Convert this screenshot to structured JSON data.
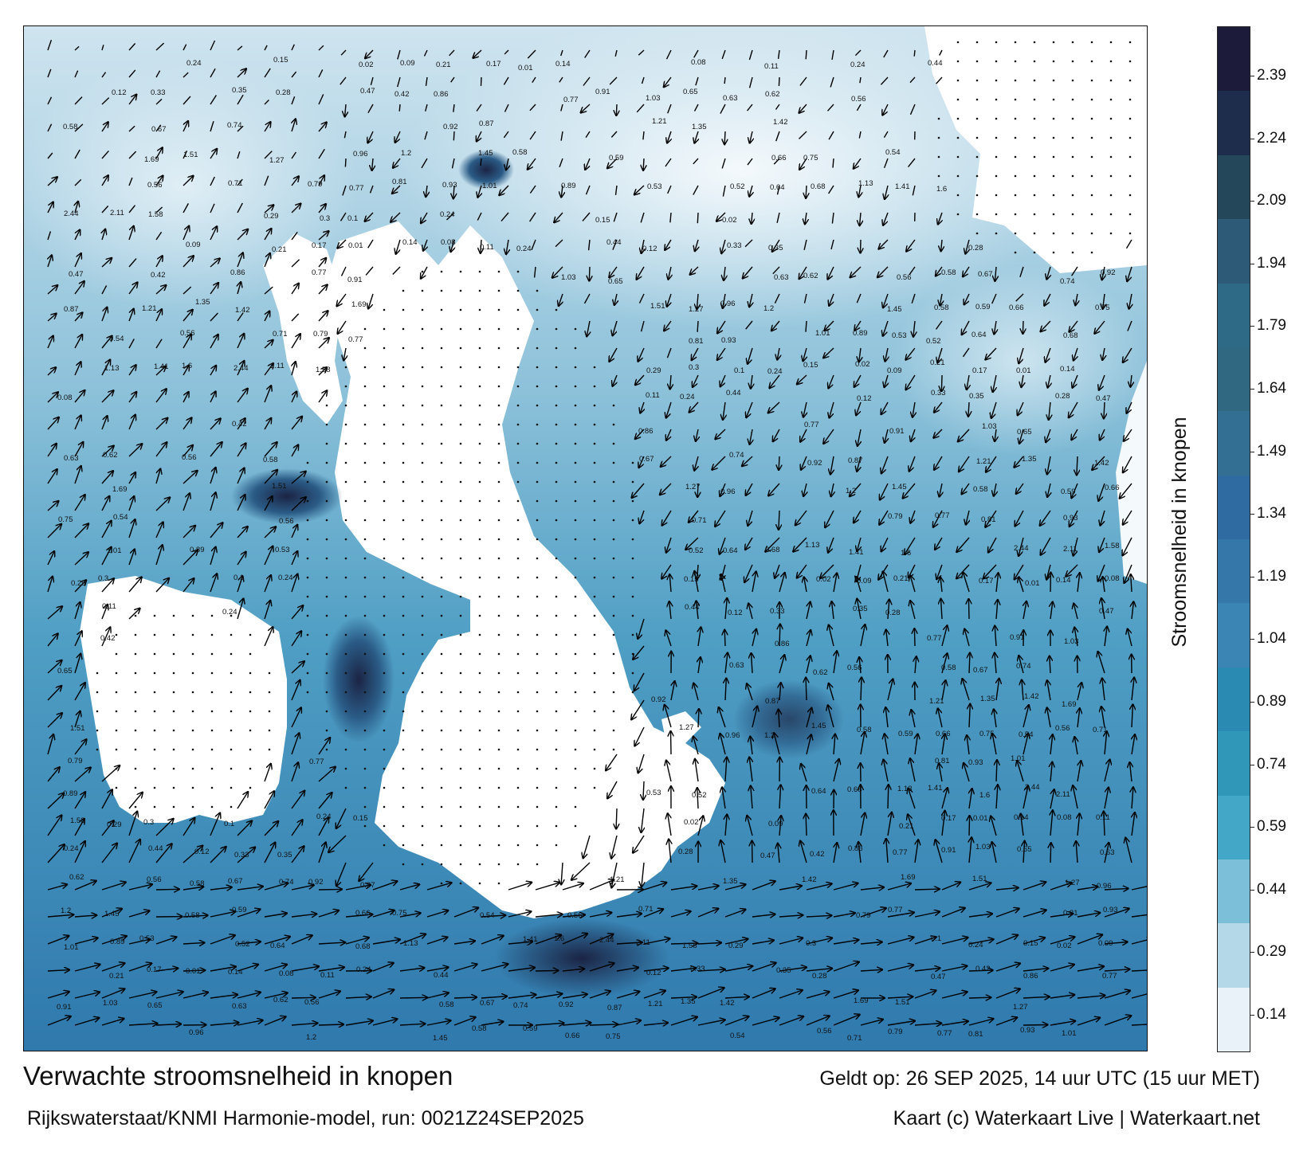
{
  "title": "Verwachte stroomsnelheid in knopen",
  "subtitle": "Rijkswaterstaat/KNMI Harmonie-model, run: 0021Z24SEP2025",
  "valid_time": "Geldt op: 26 SEP 2025, 14 uur UTC (15 uur MET)",
  "credit": "Kaart (c) Waterkaart Live | Waterkaart.net",
  "legend": {
    "title": "Stroomsnelheid in knopen",
    "ticks": [
      "2.39",
      "2.24",
      "2.09",
      "1.94",
      "1.79",
      "1.64",
      "1.49",
      "1.34",
      "1.19",
      "1.04",
      "0.89",
      "0.74",
      "0.59",
      "0.44",
      "0.29",
      "0.14"
    ],
    "colors": [
      "#1c1c3a",
      "#1e2d4c",
      "#24485a",
      "#2d5a77",
      "#2e6a86",
      "#2f6880",
      "#336f92",
      "#2f6aa0",
      "#3577a8",
      "#3a85b3",
      "#2b8ab2",
      "#3197b8",
      "#43a7c7",
      "#7cbfd8",
      "#b5d8e8",
      "#e8f2f8"
    ]
  },
  "map": {
    "water_light": "#d9ebf3",
    "water_mid": "#5aa6c8",
    "water_dark": "#2e6fa0",
    "land": "#ffffff",
    "current_labels": [
      "0.24",
      "0.15",
      "0.02",
      "0.09",
      "0.21",
      "0.17",
      "0.01",
      "0.14",
      "0.08",
      "0.11",
      "0.24",
      "0.44",
      "0.12",
      "0.33",
      "0.35",
      "0.28",
      "0.47",
      "0.42",
      "0.86",
      "0.77",
      "0.91",
      "1.03",
      "0.65",
      "0.63",
      "0.62",
      "0.56",
      "0.58",
      "0.67",
      "0.74",
      "0.92",
      "0.87",
      "1.21",
      "1.35",
      "1.42",
      "1.69",
      "1.51",
      "1.27",
      "0.96",
      "1.2",
      "1.45",
      "0.58",
      "0.59",
      "0.66",
      "0.75",
      "0.54",
      "0.56",
      "0.71",
      "0.79",
      "0.77",
      "0.81",
      "0.93",
      "1.01",
      "0.89",
      "0.53",
      "0.52",
      "0.64",
      "0.68",
      "1.13",
      "1.41",
      "1.6",
      "2.44",
      "2.11",
      "1.58",
      "0.29",
      "0.3",
      "0.1"
    ]
  }
}
